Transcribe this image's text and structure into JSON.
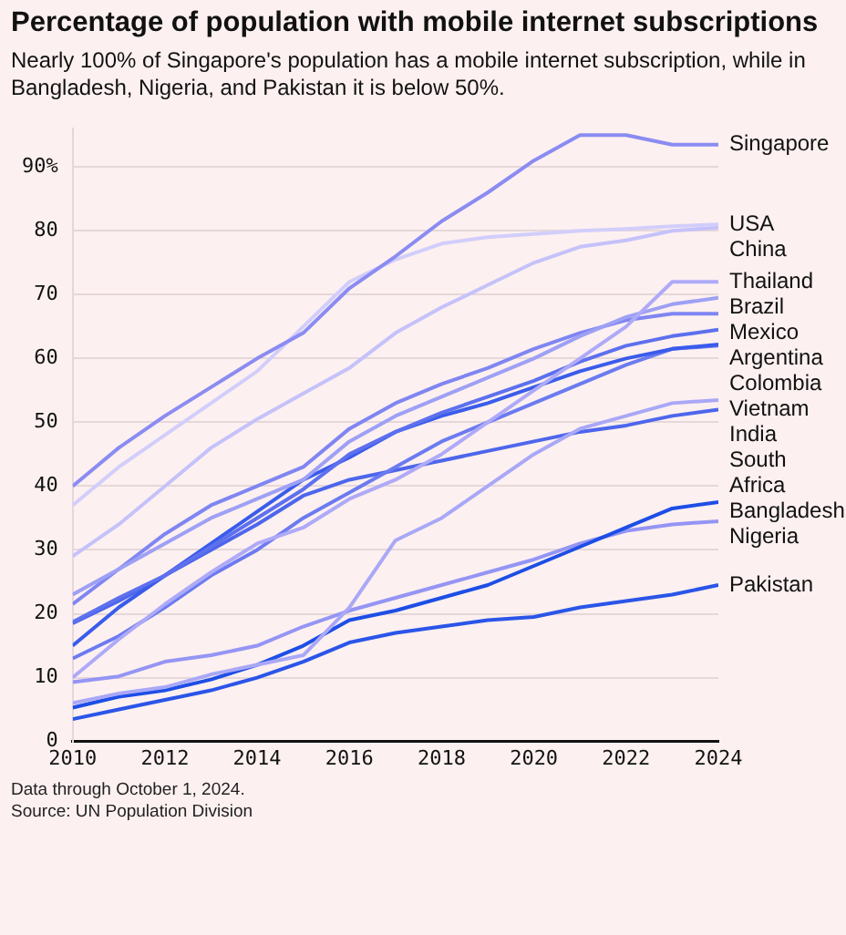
{
  "chart_data": {
    "type": "line",
    "title": "Percentage of population with mobile internet subscriptions",
    "subtitle": "Nearly 100% of Singapore's population has a mobile internet subscription, while in Bangladesh, Nigeria, and Pakistan it is below 50%.",
    "annotations": [
      "Data through October 1, 2024.",
      "Source: UN Population Division"
    ],
    "x": [
      2010,
      2011,
      2012,
      2013,
      2014,
      2015,
      2016,
      2017,
      2018,
      2019,
      2020,
      2021,
      2022,
      2023,
      2024
    ],
    "series": [
      {
        "name": "Singapore",
        "color": "#8a8cf2",
        "values": [
          40,
          46,
          51,
          55.5,
          60,
          64,
          71,
          76,
          81.5,
          86,
          91,
          95,
          95,
          93.5,
          93.5
        ]
      },
      {
        "name": "USA",
        "color": "#d2cefb",
        "values": [
          37,
          43,
          48,
          53,
          58,
          65,
          72,
          75.5,
          78,
          79,
          79.5,
          80,
          80.3,
          80.7,
          81
        ]
      },
      {
        "name": "China",
        "color": "#c5c2fa",
        "values": [
          29,
          34,
          40,
          46,
          50.5,
          54.5,
          58.5,
          64,
          68,
          71.5,
          75,
          77.5,
          78.5,
          80,
          80.5
        ]
      },
      {
        "name": "Thailand",
        "color": "#aeaaf8",
        "values": [
          10,
          16,
          21.5,
          26.5,
          31,
          33.5,
          38,
          41,
          45,
          50,
          55,
          60,
          65,
          72,
          72
        ]
      },
      {
        "name": "Brazil",
        "color": "#9ea0f5",
        "values": [
          23,
          27,
          31,
          35,
          38,
          41,
          47,
          51,
          54,
          57,
          60,
          63.5,
          66.5,
          68.5,
          69.5
        ]
      },
      {
        "name": "Mexico",
        "color": "#7f86f2",
        "values": [
          21.5,
          27,
          32.5,
          37,
          40,
          43,
          49,
          53,
          56,
          58.5,
          61.5,
          64,
          66,
          67,
          67
        ]
      },
      {
        "name": "Argentina",
        "color": "#5d70ee",
        "values": [
          18.7,
          22.5,
          26,
          30.5,
          35,
          39.5,
          45,
          48.5,
          51.5,
          54,
          56.5,
          59.5,
          62,
          63.5,
          64.5
        ]
      },
      {
        "name": "Colombia",
        "color": "#3a5ceb",
        "values": [
          15,
          21,
          26,
          31,
          36,
          41,
          44.5,
          48.5,
          51,
          53,
          55.5,
          58,
          60,
          61.5,
          62.2
        ]
      },
      {
        "name": "Vietnam",
        "color": "#6b7bf0",
        "values": [
          13,
          16.5,
          21,
          26,
          30,
          35,
          39,
          43,
          47,
          50,
          53,
          56,
          59,
          61.5,
          62
        ]
      },
      {
        "name": "India",
        "color": "#a9a8f7",
        "values": [
          6,
          7.5,
          8.5,
          10.5,
          12,
          13.5,
          21,
          31.5,
          35,
          40,
          45,
          49,
          51,
          53,
          53.5
        ]
      },
      {
        "name": "South Africa",
        "color": "#4d66ec",
        "values": [
          18.5,
          22,
          26,
          30,
          34,
          38.5,
          41,
          42.5,
          44,
          45.5,
          47,
          48.5,
          49.5,
          51,
          52
        ]
      },
      {
        "name": "Bangladesh",
        "color": "#1d4ee6",
        "values": [
          5.3,
          7,
          8,
          9.7,
          12,
          15,
          19,
          20.5,
          22.5,
          24.5,
          27.5,
          30.5,
          33.5,
          36.5,
          37.5
        ]
      },
      {
        "name": "Nigeria",
        "color": "#9495f4",
        "values": [
          9.3,
          10.2,
          12.5,
          13.5,
          15,
          18,
          20.5,
          22.5,
          24.5,
          26.5,
          28.5,
          31,
          33,
          34,
          34.5
        ]
      },
      {
        "name": "Pakistan",
        "color": "#2a55e8",
        "values": [
          3.5,
          5,
          6.5,
          8,
          10,
          12.5,
          15.5,
          17,
          18,
          19,
          19.5,
          21,
          22,
          23,
          24.5
        ]
      }
    ],
    "xlim": [
      2010,
      2024
    ],
    "xticks": [
      2010,
      2012,
      2014,
      2016,
      2018,
      2020,
      2022,
      2024
    ],
    "ylim": [
      0,
      96
    ],
    "yticks": [
      0,
      10,
      20,
      30,
      40,
      50,
      60,
      70,
      80,
      {
        "value": 90,
        "label": "90%"
      }
    ],
    "grid": "y",
    "legend": false,
    "marker": "none",
    "line_style": "solid"
  }
}
